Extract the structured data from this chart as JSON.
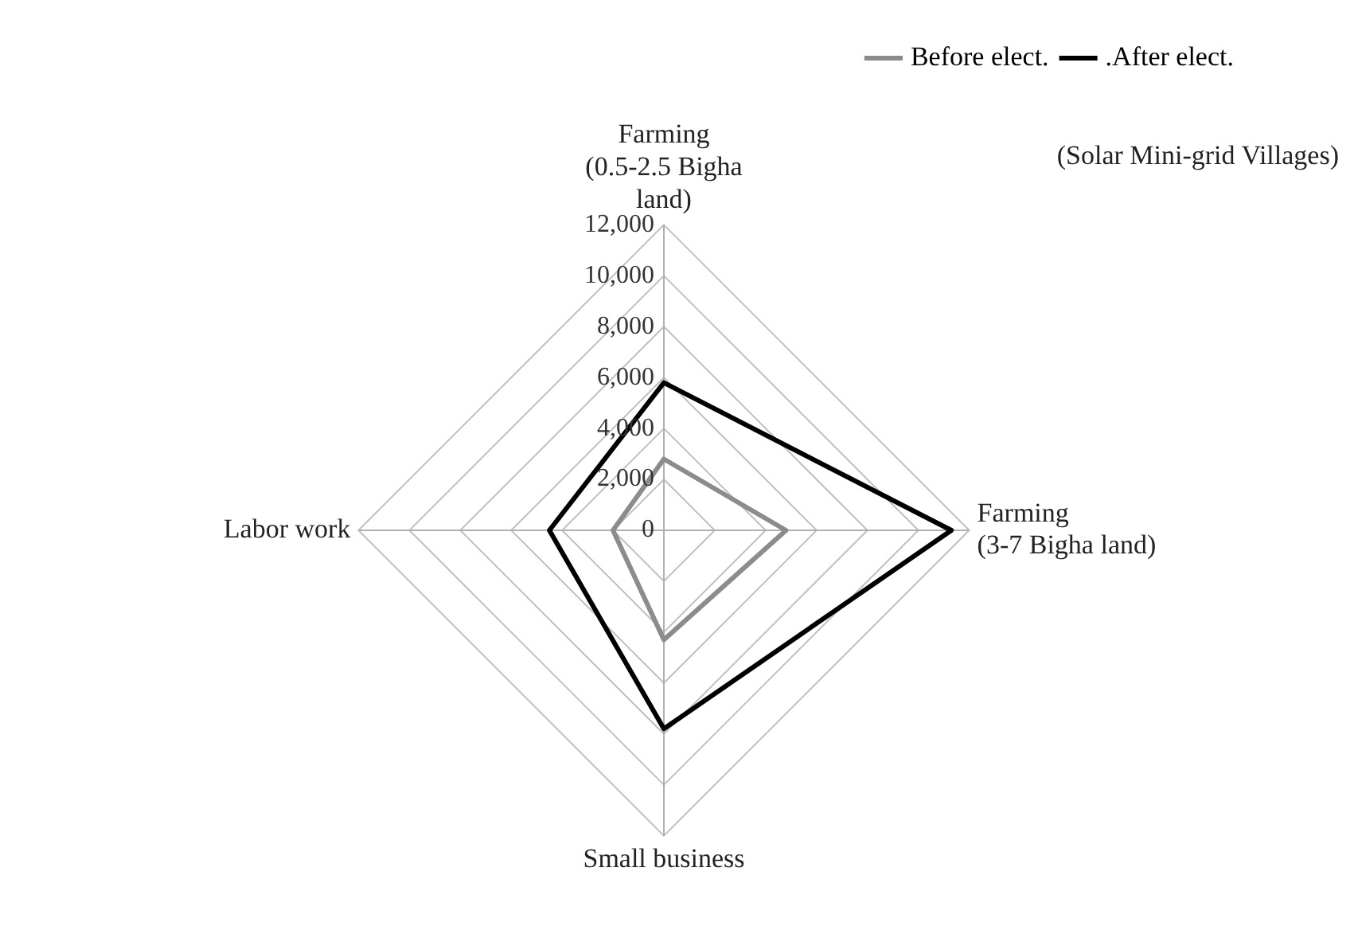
{
  "chart_data": {
    "type": "radar",
    "categories": [
      "Farming (0.5-2.5 Bigha land)",
      "Farming (3-7 Bigha land)",
      "Small business",
      "Labor work"
    ],
    "series": [
      {
        "name": "Before elect.",
        "color": "#8c8c8c",
        "values": [
          2800,
          4800,
          4300,
          2000
        ]
      },
      {
        "name": ".After elect.",
        "color": "#000000",
        "values": [
          5800,
          11300,
          7800,
          4500
        ]
      }
    ],
    "ylim": [
      0,
      12000
    ],
    "yticks": [
      {
        "value": 0,
        "label": "0"
      },
      {
        "value": 2000,
        "label": "2,000"
      },
      {
        "value": 4000,
        "label": "4,000"
      },
      {
        "value": 6000,
        "label": "6,000"
      },
      {
        "value": 8000,
        "label": "8,000"
      },
      {
        "value": 10000,
        "label": "10,000"
      },
      {
        "value": 12000,
        "label": "12,000"
      }
    ],
    "grid": true,
    "legend": "top right",
    "marker": "none",
    "line_style": "solid",
    "annotations": [
      "(Solar Mini-grid Villages)"
    ]
  }
}
